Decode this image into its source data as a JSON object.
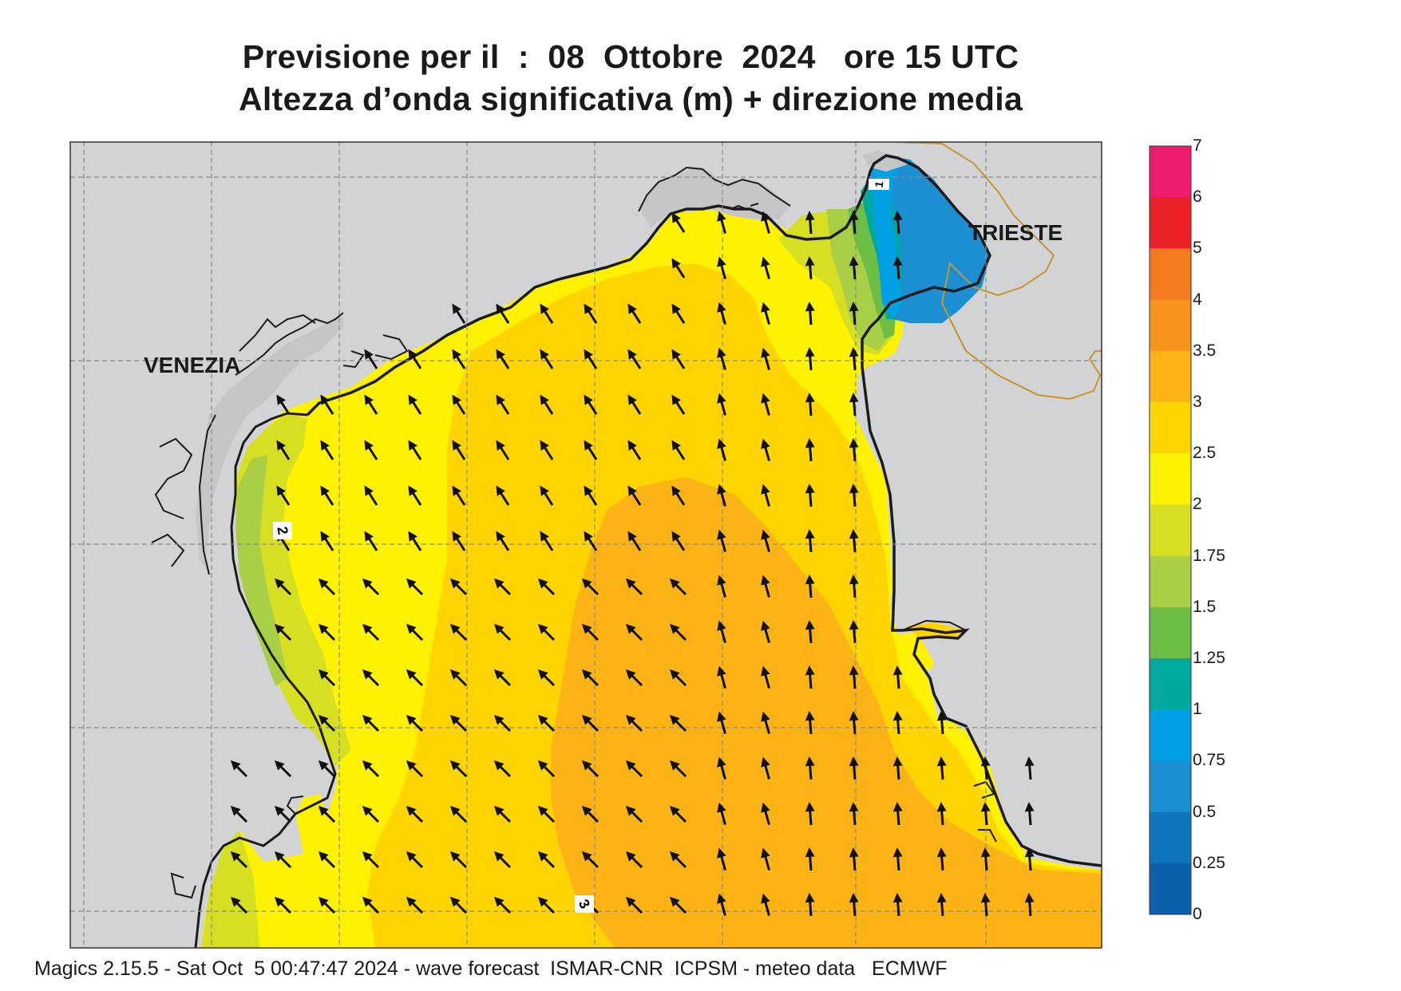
{
  "header": {
    "line1": "Previsione per il  :  08  Ottobre  2024   ore 15 UTC",
    "line2": "Altezza d’onda significativa (m) + direzione media"
  },
  "map": {
    "places": [
      {
        "id": "venezia",
        "label": "VENEZIA"
      },
      {
        "id": "trieste",
        "label": "TRIESTE"
      }
    ],
    "contour_labels": [
      "1",
      "2",
      "3"
    ],
    "arrow_direction": "north-west",
    "land_color": "#d1d3d4",
    "coast_color": "#1c1c1c",
    "border_color": "#c8952a"
  },
  "colorbar": {
    "labels": [
      "7",
      "6",
      "5",
      "4",
      "3.5",
      "3",
      "2.5",
      "2",
      "1.75",
      "1.5",
      "1.25",
      "1",
      "0.75",
      "0.5",
      "0.25",
      "0"
    ],
    "colors": [
      "#ee1c6e",
      "#ec2027",
      "#f47b20",
      "#f6941d",
      "#fcb316",
      "#ffd400",
      "#fff200",
      "#d7df23",
      "#a8cf45",
      "#6cbe45",
      "#00a99d",
      "#00a1e4",
      "#1b8fd2",
      "#0f75bc",
      "#0b5fab"
    ]
  },
  "footer": {
    "text": "Magics 2.15.5 - Sat Oct  5 00:47:47 2024 - wave forecast  ISMAR-CNR  ICPSM - meteo data   ECMWF"
  }
}
